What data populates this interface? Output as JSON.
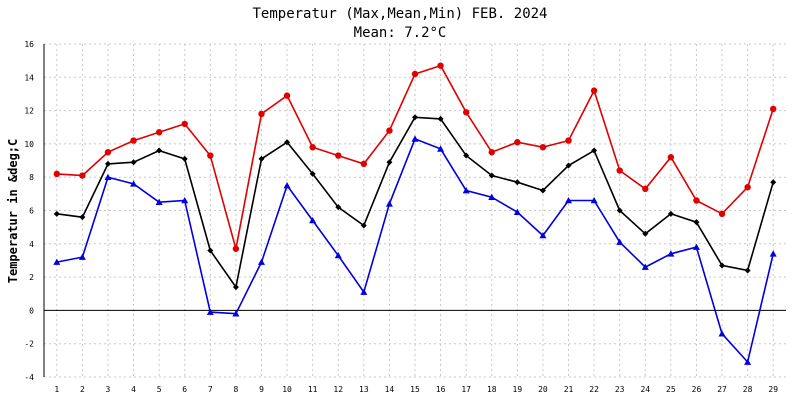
{
  "chart_data": {
    "type": "line",
    "title": "Temperatur (Max,Mean,Min) FEB. 2024",
    "subtitle": "Mean: 7.2°C",
    "ylabel": "Temperatur in &deg;C",
    "xlabel": "",
    "x": [
      1,
      2,
      3,
      4,
      5,
      6,
      7,
      8,
      9,
      10,
      11,
      12,
      13,
      14,
      15,
      16,
      17,
      18,
      19,
      20,
      21,
      22,
      23,
      24,
      25,
      26,
      27,
      28,
      29
    ],
    "xlim": [
      0.5,
      29.5
    ],
    "ylim": [
      -4,
      16
    ],
    "yticks": [
      -4,
      -2,
      0,
      2,
      4,
      6,
      8,
      10,
      12,
      14,
      16
    ],
    "grid": true,
    "series": [
      {
        "key": "max",
        "color": "#e00000",
        "marker": "circle",
        "values": [
          8.2,
          8.1,
          9.5,
          10.2,
          10.7,
          11.2,
          9.3,
          3.7,
          11.8,
          12.9,
          9.8,
          9.3,
          8.8,
          10.8,
          14.2,
          14.7,
          11.9,
          9.5,
          10.1,
          9.8,
          10.2,
          13.2,
          8.4,
          7.3,
          9.2,
          6.6,
          5.8,
          7.4,
          12.1
        ]
      },
      {
        "key": "mean",
        "color": "#000000",
        "marker": "diamond",
        "values": [
          5.8,
          5.6,
          8.8,
          8.9,
          9.6,
          9.1,
          3.6,
          1.4,
          9.1,
          10.1,
          8.2,
          6.2,
          5.1,
          8.9,
          11.6,
          11.5,
          9.3,
          8.1,
          7.7,
          7.2,
          8.7,
          9.6,
          6.0,
          4.6,
          5.8,
          5.3,
          2.7,
          2.4,
          7.7
        ]
      },
      {
        "key": "min",
        "color": "#0000e0",
        "marker": "triangle",
        "values": [
          2.9,
          3.2,
          8.0,
          7.6,
          6.5,
          6.6,
          -0.1,
          -0.2,
          2.9,
          7.5,
          5.4,
          3.3,
          1.1,
          6.4,
          10.3,
          9.7,
          7.2,
          6.8,
          5.9,
          4.5,
          6.6,
          6.6,
          4.1,
          2.6,
          3.4,
          3.8,
          -1.4,
          -3.1,
          3.4
        ]
      }
    ]
  }
}
